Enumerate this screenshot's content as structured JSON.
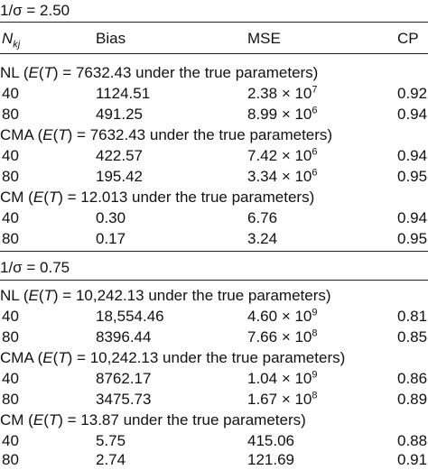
{
  "table": {
    "columns": [
      "N",
      "Bias",
      "MSE",
      "CP"
    ],
    "col_sub": "kj",
    "sections": [
      {
        "heading": "1/σ = 2.50",
        "groups": [
          {
            "method": "NL",
            "et_value": "7632.43",
            "rows": [
              {
                "n": "40",
                "bias": "1124.51",
                "mse_mantissa": "2.38",
                "mse_exp": "7",
                "cp": "0.92"
              },
              {
                "n": "80",
                "bias": "491.25",
                "mse_mantissa": "8.99",
                "mse_exp": "6",
                "cp": "0.94"
              }
            ]
          },
          {
            "method": "CMA",
            "et_value": "7632.43",
            "rows": [
              {
                "n": "40",
                "bias": "422.57",
                "mse_mantissa": "7.42",
                "mse_exp": "6",
                "cp": "0.94"
              },
              {
                "n": "80",
                "bias": "195.42",
                "mse_mantissa": "3.34",
                "mse_exp": "6",
                "cp": "0.95"
              }
            ]
          },
          {
            "method": "CM",
            "et_value": "12.013",
            "rows": [
              {
                "n": "40",
                "bias": "0.30",
                "mse": "6.76",
                "cp": "0.94"
              },
              {
                "n": "80",
                "bias": "0.17",
                "mse": "3.24",
                "cp": "0.95"
              }
            ]
          }
        ]
      },
      {
        "heading": "1/σ = 0.75",
        "groups": [
          {
            "method": "NL",
            "et_value": "10,242.13",
            "rows": [
              {
                "n": "40",
                "bias": "18,554.46",
                "mse_mantissa": "4.60",
                "mse_exp": "9",
                "cp": "0.81"
              },
              {
                "n": "80",
                "bias": "8396.44",
                "mse_mantissa": "7.66",
                "mse_exp": "8",
                "cp": "0.85"
              }
            ]
          },
          {
            "method": "CMA",
            "et_value": "10,242.13",
            "rows": [
              {
                "n": "40",
                "bias": "8762.17",
                "mse_mantissa": "1.04",
                "mse_exp": "9",
                "cp": "0.86"
              },
              {
                "n": "80",
                "bias": "3475.73",
                "mse_mantissa": "1.67",
                "mse_exp": "8",
                "cp": "0.89"
              }
            ]
          },
          {
            "method": "CM",
            "et_value": "13.87",
            "rows": [
              {
                "n": "40",
                "bias": "5.75",
                "mse": "415.06",
                "cp": "0.88"
              },
              {
                "n": "80",
                "bias": "2.74",
                "mse": "121.69",
                "cp": "0.91"
              }
            ]
          }
        ]
      }
    ]
  }
}
